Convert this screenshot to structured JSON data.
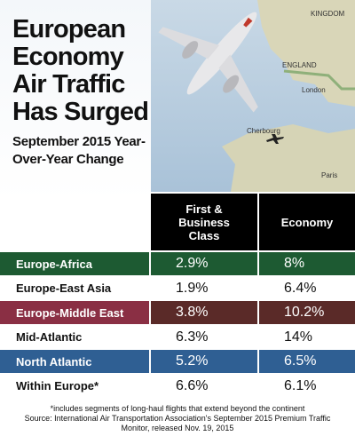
{
  "title": "European Economy Air Traffic Has Surged",
  "subtitle": "September 2015 Year-Over-Year Change",
  "image_labels": [
    "KINGDOM",
    "ENGLAND",
    "London",
    "Cherbourg",
    "Paris"
  ],
  "table": {
    "columns": [
      "First & Business Class",
      "Economy"
    ],
    "rows": [
      {
        "label": "Europe-Africa",
        "values": [
          "2.9%",
          "8%"
        ]
      },
      {
        "label": "Europe-East Asia",
        "values": [
          "1.9%",
          "6.4%"
        ]
      },
      {
        "label": "Europe-Middle East",
        "values": [
          "3.8%",
          "10.2%"
        ]
      },
      {
        "label": "Mid-Atlantic",
        "values": [
          "6.3%",
          "14%"
        ]
      },
      {
        "label": "North Atlantic",
        "values": [
          "5.2%",
          "6.5%"
        ]
      },
      {
        "label": "Within Europe*",
        "values": [
          "6.6%",
          "6.1%"
        ]
      }
    ]
  },
  "footnote": "*includes segments of long-haul flights that extend beyond the continent",
  "source": "Source: International Air Transportation Association's September 2015 Premium Traffic Monitor, released Nov. 19, 2015"
}
